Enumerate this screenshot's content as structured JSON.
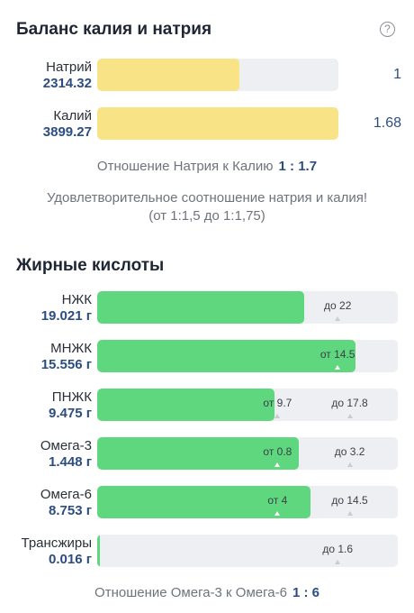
{
  "sodium_potassium": {
    "title": "Баланс калия и натрия",
    "help_icon": "?",
    "rows": [
      {
        "name": "Натрий",
        "value": "2314.32",
        "ratio": "1",
        "fill": 0.59
      },
      {
        "name": "Калий",
        "value": "3899.27",
        "ratio": "1.68",
        "fill": 1.0
      }
    ],
    "ratio_label": "Отношение Натрия к Калию",
    "ratio_value": "1 : 1.7",
    "note_line1": "Удовлетворительное соотношение натрия и калия!",
    "note_line2": "(от 1:1,5 до 1:1,75)"
  },
  "fatty_acids": {
    "title": "Жирные кислоты",
    "rows": [
      {
        "name": "НЖК",
        "value": "19.021 г",
        "fill": 0.69,
        "marks": [
          {
            "text": "до 22",
            "pos": 0.8
          }
        ]
      },
      {
        "name": "МНЖК",
        "value": "15.556 г",
        "fill": 0.86,
        "marks": [
          {
            "text": "от 14.5",
            "pos": 0.8
          }
        ]
      },
      {
        "name": "ПНЖК",
        "value": "9.475 г",
        "fill": 0.59,
        "marks": [
          {
            "text": "от 9.7",
            "pos": 0.6
          },
          {
            "text": "до 17.8",
            "pos": 0.84
          }
        ]
      },
      {
        "name": "Омега-3",
        "value": "1.448 г",
        "fill": 0.67,
        "marks": [
          {
            "text": "от 0.8",
            "pos": 0.6
          },
          {
            "text": "до 3.2",
            "pos": 0.84
          }
        ]
      },
      {
        "name": "Омега-6",
        "value": "8.753 г",
        "fill": 0.71,
        "marks": [
          {
            "text": "от 4",
            "pos": 0.6
          },
          {
            "text": "до 14.5",
            "pos": 0.84
          }
        ]
      },
      {
        "name": "Трансжиры",
        "value": "0.016 г",
        "fill": 0.008,
        "marks": [
          {
            "text": "до 1.6",
            "pos": 0.8
          }
        ]
      }
    ],
    "ratio_label": "Отношение Омега-3 к Омега-6",
    "ratio_value": "1 : 6"
  },
  "colors": {
    "yellow": "#f9e387",
    "green": "#5fd77e",
    "value_blue": "#2c4d82",
    "track": "#eeeff2"
  }
}
